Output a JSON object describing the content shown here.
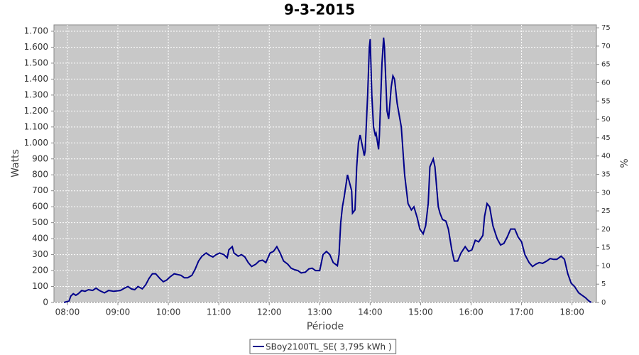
{
  "chart_data": {
    "type": "line",
    "title": "9-3-2015",
    "x_label": "Période",
    "y_label": "Watts",
    "y2_label": "%",
    "xlim": [
      464,
      1109
    ],
    "ylim": [
      0,
      1740
    ],
    "y2lim": [
      0,
      75.8
    ],
    "xticks": [
      {
        "value": 480,
        "label": "08:00"
      },
      {
        "value": 540,
        "label": "09:00"
      },
      {
        "value": 600,
        "label": "10:00"
      },
      {
        "value": 660,
        "label": "11:00"
      },
      {
        "value": 720,
        "label": "12:00"
      },
      {
        "value": 780,
        "label": "13:00"
      },
      {
        "value": 840,
        "label": "14:00"
      },
      {
        "value": 900,
        "label": "15:00"
      },
      {
        "value": 960,
        "label": "16:00"
      },
      {
        "value": 1020,
        "label": "17:00"
      },
      {
        "value": 1080,
        "label": "18:00"
      }
    ],
    "yticks": [
      0,
      100,
      200,
      300,
      400,
      500,
      600,
      700,
      800,
      900,
      {
        "value": 1000,
        "label": "1.000"
      },
      {
        "value": 1100,
        "label": "1.100"
      },
      {
        "value": 1200,
        "label": "1.200"
      },
      {
        "value": 1300,
        "label": "1.300"
      },
      {
        "value": 1400,
        "label": "1.400"
      },
      {
        "value": 1500,
        "label": "1.500"
      },
      {
        "value": 1600,
        "label": "1.600"
      },
      {
        "value": 1700,
        "label": "1.700"
      }
    ],
    "y2ticks": [
      0,
      5,
      10,
      15,
      20,
      25,
      30,
      35,
      40,
      45,
      50,
      55,
      60,
      65,
      70,
      75
    ],
    "grid": true,
    "legend": "bottom",
    "x": [
      476,
      482,
      484,
      487,
      490,
      493,
      497,
      501,
      505,
      510,
      514,
      518,
      524,
      529,
      535,
      543,
      548,
      552,
      556,
      560,
      564,
      569,
      573,
      577,
      581,
      585,
      590,
      594,
      598,
      602,
      607,
      611,
      615,
      619,
      623,
      628,
      632,
      636,
      640,
      645,
      649,
      653,
      657,
      661,
      666,
      670,
      672,
      676,
      678,
      683,
      687,
      691,
      695,
      699,
      704,
      708,
      712,
      716,
      721,
      725,
      729,
      733,
      737,
      742,
      746,
      750,
      754,
      758,
      763,
      767,
      771,
      775,
      780,
      784,
      788,
      792,
      796,
      801,
      803,
      805,
      807,
      809,
      813,
      818,
      819,
      822,
      824,
      826,
      828,
      830,
      833,
      834,
      837,
      839,
      840,
      842,
      844,
      846,
      847,
      850,
      851,
      854,
      856,
      857,
      860,
      862,
      865,
      867,
      869,
      872,
      877,
      881,
      885,
      889,
      892,
      896,
      899,
      903,
      906,
      909,
      911,
      915,
      917,
      921,
      923,
      926,
      930,
      933,
      937,
      940,
      944,
      948,
      953,
      957,
      961,
      965,
      969,
      974,
      976,
      979,
      982,
      986,
      991,
      995,
      999,
      1003,
      1007,
      1012,
      1016,
      1020,
      1024,
      1029,
      1033,
      1037,
      1041,
      1045,
      1050,
      1054,
      1058,
      1062,
      1067,
      1071,
      1075,
      1079,
      1083,
      1088,
      1092,
      1096,
      1100,
      1103
    ],
    "series": [
      {
        "name": "SBoy2100TL_SE( 3,795 kWh )",
        "color": "#00008b",
        "values": [
          0,
          10,
          40,
          55,
          45,
          55,
          75,
          70,
          80,
          75,
          90,
          75,
          60,
          75,
          70,
          75,
          90,
          100,
          85,
          80,
          100,
          85,
          110,
          150,
          180,
          180,
          150,
          130,
          140,
          160,
          180,
          175,
          170,
          155,
          155,
          170,
          210,
          260,
          290,
          310,
          295,
          285,
          300,
          310,
          300,
          280,
          330,
          350,
          310,
          290,
          300,
          285,
          250,
          225,
          240,
          260,
          265,
          250,
          310,
          320,
          350,
          310,
          260,
          240,
          215,
          205,
          200,
          185,
          190,
          210,
          215,
          200,
          200,
          300,
          320,
          300,
          250,
          230,
          300,
          500,
          600,
          660,
          800,
          700,
          560,
          580,
          850,
          1000,
          1050,
          1000,
          920,
          950,
          1300,
          1600,
          1650,
          1300,
          1100,
          1050,
          1060,
          960,
          1050,
          1500,
          1660,
          1600,
          1200,
          1150,
          1350,
          1420,
          1400,
          1250,
          1100,
          800,
          620,
          580,
          600,
          530,
          460,
          430,
          480,
          620,
          850,
          900,
          850,
          600,
          560,
          520,
          510,
          460,
          330,
          260,
          260,
          310,
          350,
          320,
          330,
          390,
          380,
          420,
          540,
          620,
          600,
          480,
          400,
          360,
          370,
          410,
          460,
          460,
          410,
          380,
          300,
          250,
          225,
          240,
          250,
          245,
          260,
          275,
          270,
          270,
          290,
          270,
          180,
          120,
          100,
          60,
          45,
          30,
          10,
          0
        ]
      }
    ]
  }
}
